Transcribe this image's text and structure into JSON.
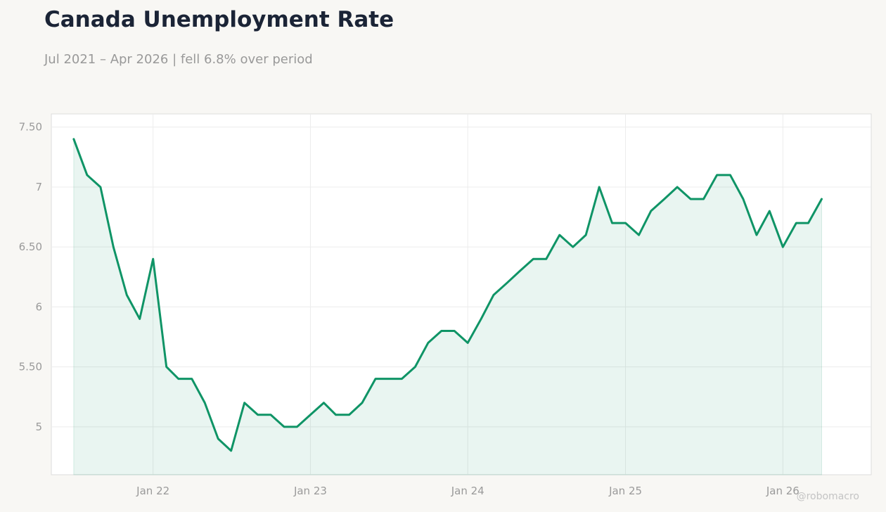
{
  "header": {
    "title": "Canada Unemployment Rate",
    "subtitle": "Jul 2021 – Apr 2026 | fell 6.8% over period"
  },
  "credit": "@robomacro",
  "colors": {
    "line": "#0f9466",
    "fill": "#0f9466",
    "grid": "#ececec",
    "axis_text": "#9a9a9a",
    "frame": "#dddddd",
    "plot_bg": "#ffffff"
  },
  "chart_data": {
    "type": "area",
    "title": "Canada Unemployment Rate",
    "subtitle": "Jul 2021 – Apr 2026 | fell 6.8% over period",
    "xlabel": "",
    "ylabel": "",
    "grid": true,
    "legend": "none",
    "ylim": [
      4.6,
      7.61
    ],
    "yticks": [
      5,
      5.5,
      6,
      6.5,
      7,
      7.5
    ],
    "ytick_labels": [
      "5",
      "5.50",
      "6",
      "6.50",
      "7",
      "7.50"
    ],
    "xlim": [
      "2021-05-10",
      "2026-07-25"
    ],
    "xticks": [
      "2022-01-01",
      "2023-01-01",
      "2024-01-01",
      "2025-01-01",
      "2026-01-01"
    ],
    "xtick_labels": [
      "Jan 22",
      "Jan 23",
      "Jan 24",
      "Jan 25",
      "Jan 26"
    ],
    "series": [
      {
        "x": [
          "2021-07",
          "2021-08",
          "2021-09",
          "2021-10",
          "2021-11",
          "2021-12",
          "2022-01",
          "2022-02",
          "2022-03",
          "2022-04",
          "2022-05",
          "2022-06",
          "2022-07",
          "2022-08",
          "2022-09",
          "2022-10",
          "2022-11",
          "2022-12",
          "2023-01",
          "2023-02",
          "2023-03",
          "2023-04",
          "2023-05",
          "2023-06",
          "2023-07",
          "2023-08",
          "2023-09",
          "2023-10",
          "2023-11",
          "2023-12",
          "2024-01",
          "2024-02",
          "2024-03",
          "2024-04",
          "2024-05",
          "2024-06",
          "2024-07",
          "2024-08",
          "2024-09",
          "2024-10",
          "2024-11",
          "2024-12",
          "2025-01",
          "2025-02",
          "2025-03",
          "2025-04",
          "2025-05",
          "2025-06",
          "2025-07",
          "2025-08",
          "2025-09",
          "2025-10",
          "2025-11",
          "2025-12",
          "2026-01",
          "2026-02",
          "2026-03",
          "2026-04"
        ],
        "values": [
          7.4,
          7.1,
          7.0,
          6.5,
          6.1,
          5.9,
          6.4,
          5.5,
          5.4,
          5.4,
          5.2,
          4.9,
          4.8,
          5.2,
          5.1,
          5.1,
          5.0,
          5.0,
          5.1,
          5.2,
          5.1,
          5.1,
          5.2,
          5.4,
          5.4,
          5.4,
          5.5,
          5.7,
          5.8,
          5.8,
          5.7,
          5.9,
          6.1,
          6.2,
          6.3,
          6.4,
          6.4,
          6.6,
          6.5,
          6.6,
          7.0,
          6.7,
          6.7,
          6.6,
          6.8,
          6.9,
          7.0,
          6.9,
          6.9,
          7.1,
          7.1,
          6.9,
          6.6,
          6.8,
          6.5,
          6.7,
          6.7,
          6.9
        ]
      }
    ]
  }
}
